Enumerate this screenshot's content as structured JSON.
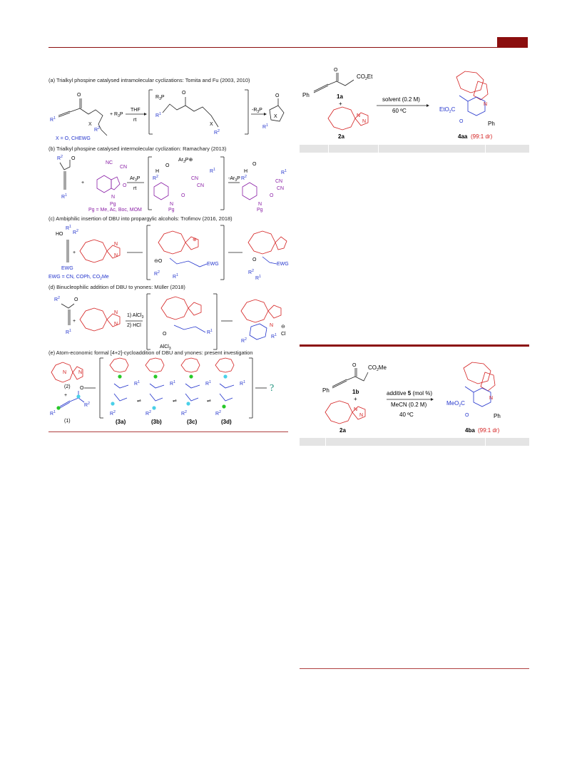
{
  "left_panel": {
    "scheme_labels": [
      "(a) Trialkyl phospine catalysed intramolecular cyclizations: Tomita and Fu (2003, 2010)",
      "(b) Trialkyl phospine catalysed intermolecular cyclization: Ramachary (2013)",
      "(c) Ambiphilic insertion of DBU into propargylic alcohols: Trofimov (2016, 2018)",
      "(d) Binucleophilic addition of DBU to ynones: Müller (2018)",
      "(e) Atom-economic formal [4+2]-cycloaddition of DBU and ynones: present investigation"
    ],
    "row_a": {
      "reagent": "R3P",
      "cond_top": "THF",
      "cond_bottom": "rt",
      "x_note": "X = O, CHEWG",
      "arrow_label": "-R3P"
    },
    "row_b": {
      "reagent": "Ar3P",
      "cond_bottom": "rt",
      "pg_note": "Pg = Me, Ac, Boc, MOM",
      "arrow_label": "-Ar3P"
    },
    "row_c": {
      "ewg_note": "EWG = CN, COPh, CO2Me"
    },
    "row_d": {
      "cond_1": "1) AlCl3",
      "cond_2": "2) HCl"
    },
    "row_e": {
      "cmpd_2": "(2)",
      "cmpd_1": "(1)",
      "intermediates": [
        "(3a)",
        "(3b)",
        "(3c)",
        "(3d)"
      ],
      "question": "?"
    }
  },
  "right_top": {
    "reactant_1": "1a",
    "reactant_2": "2a",
    "substituent": "CO2Et",
    "ph": "Ph",
    "plus": "+",
    "cond_1": "solvent (0.2 M)",
    "cond_2": "60 ºC",
    "product": "4aa",
    "dr": "(99:1 dr)",
    "ester_label": "EtO2C"
  },
  "right_bottom": {
    "reactant_1": "1b",
    "reactant_2": "2a",
    "substituent": "CO2Me",
    "ph": "Ph",
    "plus": "+",
    "cond_1": "additive 5 (mol %)",
    "cond_2": "MeCN (0.2 M)",
    "cond_3": "40 ºC",
    "product": "4ba",
    "dr": "(99:1 dr)",
    "ester_label": "MeO2C"
  }
}
